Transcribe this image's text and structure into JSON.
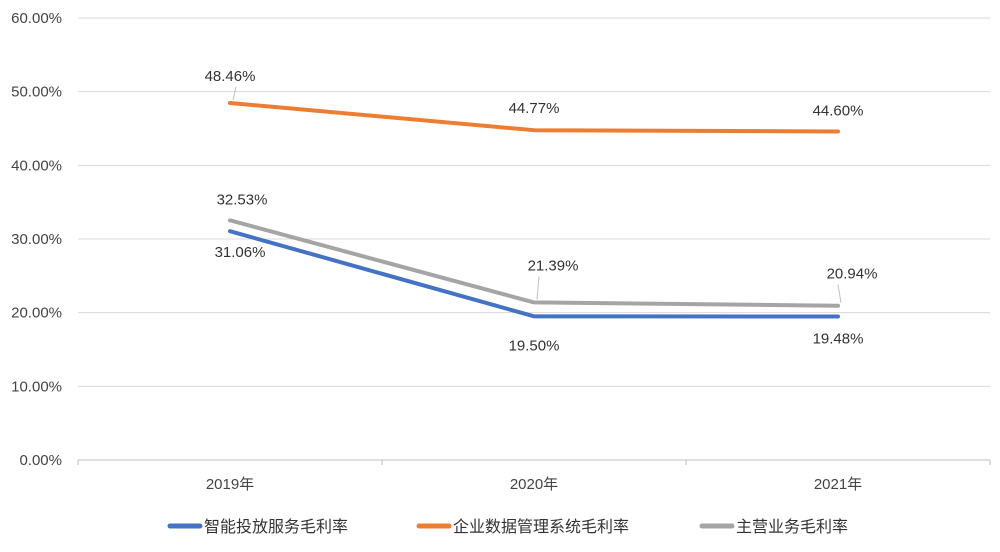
{
  "chart_data": {
    "type": "line",
    "categories": [
      "2019年",
      "2020年",
      "2021年"
    ],
    "series": [
      {
        "name": "智能投放服务毛利率",
        "values": [
          31.06,
          19.5,
          19.48
        ],
        "labels": [
          "31.06%",
          "19.50%",
          "19.48%"
        ],
        "color": "#4472C4"
      },
      {
        "name": "企业数据管理系统毛利率",
        "values": [
          48.46,
          44.77,
          44.6
        ],
        "labels": [
          "48.46%",
          "44.77%",
          "44.60%"
        ],
        "color": "#ED7D31"
      },
      {
        "name": "主营业务毛利率",
        "values": [
          32.53,
          21.39,
          20.94
        ],
        "labels": [
          "32.53%",
          "21.39%",
          "20.94%"
        ],
        "color": "#A5A5A5"
      }
    ],
    "ylim": [
      0,
      60
    ],
    "yticks": [
      "0.00%",
      "10.00%",
      "20.00%",
      "30.00%",
      "40.00%",
      "50.00%",
      "60.00%"
    ],
    "grid": true,
    "legend_position": "bottom"
  }
}
